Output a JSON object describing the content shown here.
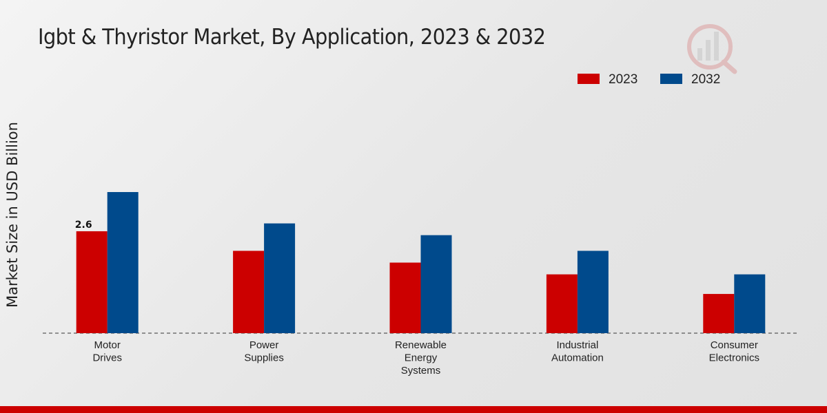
{
  "chart_data": {
    "type": "bar",
    "title": "Igbt & Thyristor Market, By Application, 2023 & 2032",
    "xlabel": "",
    "ylabel": "Market Size in USD Billion",
    "categories": [
      [
        "Motor",
        "Drives"
      ],
      [
        "Power",
        "Supplies"
      ],
      [
        "Renewable",
        "Energy",
        "Systems"
      ],
      [
        "Industrial",
        "Automation"
      ],
      [
        "Consumer",
        "Electronics"
      ]
    ],
    "series": [
      {
        "name": "2023",
        "color": "#cc0000",
        "values": [
          2.6,
          2.1,
          1.8,
          1.5,
          1.0
        ]
      },
      {
        "name": "2032",
        "color": "#004a8c",
        "values": [
          3.6,
          2.8,
          2.5,
          2.1,
          1.5
        ]
      }
    ],
    "data_labels": [
      {
        "series": 0,
        "index": 0,
        "text": "2.6"
      }
    ],
    "ylim": [
      0,
      8.5
    ],
    "grid": false,
    "legend_position": "top-right"
  }
}
